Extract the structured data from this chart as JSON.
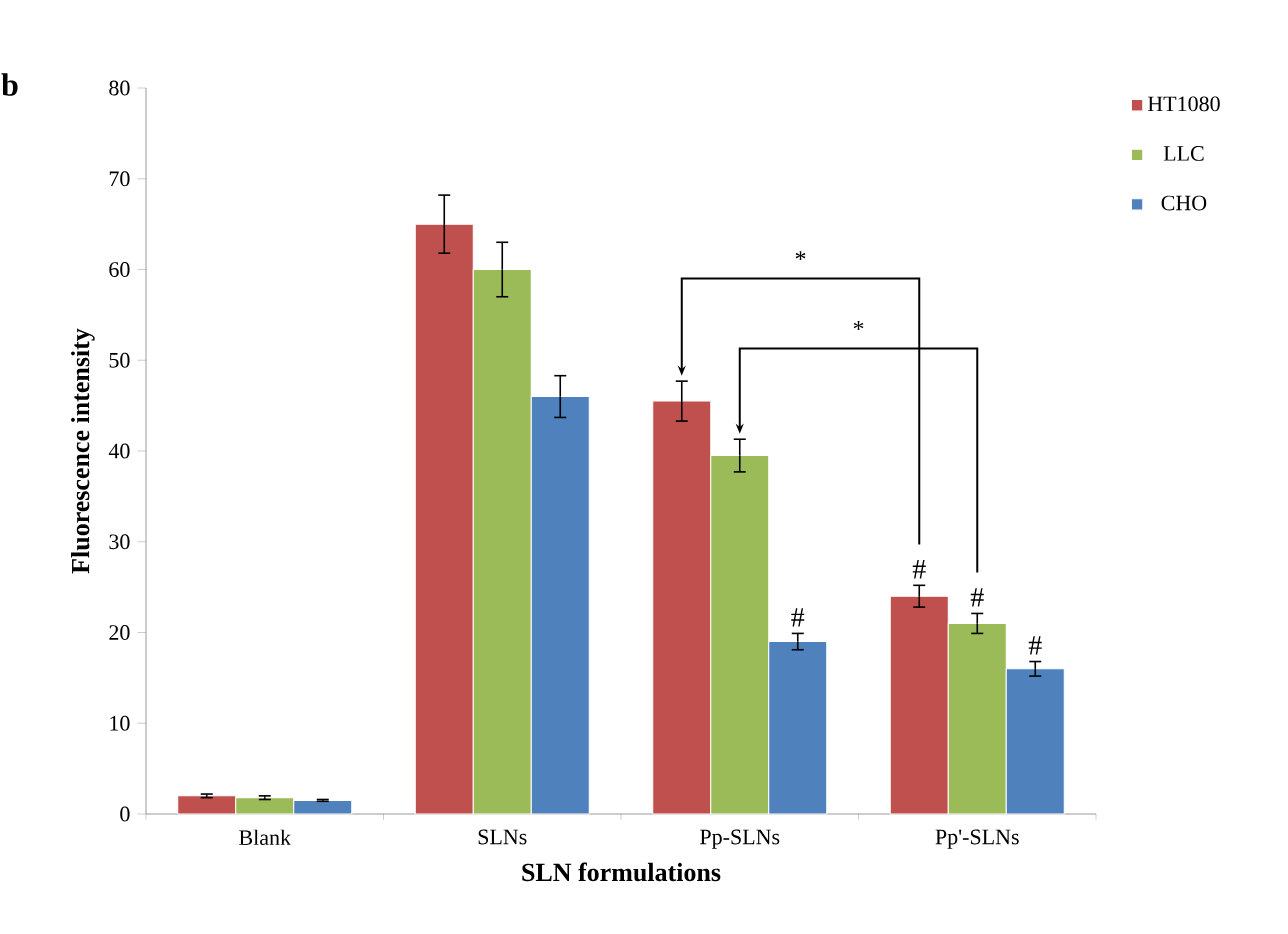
{
  "chart_data": {
    "type": "bar",
    "xlabel": "SLN formulations",
    "ylabel": "Fluorescence intensity",
    "categories": [
      "Blank",
      "SLNs",
      "Pp-SLNs",
      "Pp'-SLNs"
    ],
    "series": [
      {
        "name": "HT1080",
        "color": "#c0504d",
        "values": [
          2.0,
          65,
          45.5,
          24
        ],
        "errors": [
          0.2,
          3.2,
          2.2,
          1.2
        ]
      },
      {
        "name": "LLC",
        "color": "#9bbb59",
        "values": [
          1.8,
          60,
          39.5,
          21
        ],
        "errors": [
          0.2,
          3.0,
          1.8,
          1.1
        ]
      },
      {
        "name": "CHO",
        "color": "#4f81bd",
        "values": [
          1.5,
          46,
          19,
          16
        ],
        "errors": [
          0.1,
          2.3,
          0.9,
          0.8
        ]
      }
    ],
    "ylim": [
      0,
      80
    ],
    "yticks": [
      0,
      10,
      20,
      30,
      40,
      50,
      60,
      70,
      80
    ],
    "legend": "top right",
    "grid": false,
    "annotations": [
      "b",
      "*",
      "*",
      "#",
      "#",
      "#",
      "#"
    ]
  }
}
